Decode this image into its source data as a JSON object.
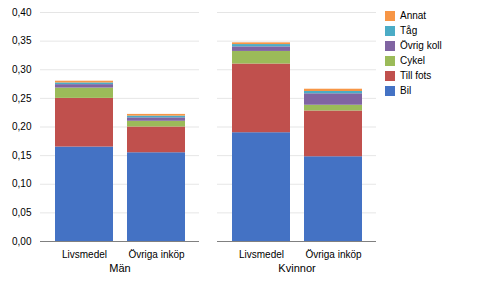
{
  "chart_data": {
    "type": "bar",
    "stacked": true,
    "categories": [
      "Livsmedel",
      "Övriga inköp",
      "Livsmedel",
      "Övriga inköp"
    ],
    "groups": [
      "Män",
      "Män",
      "Kvinnor",
      "Kvinnor"
    ],
    "series": [
      {
        "name": "Bil",
        "color": "#4472C4",
        "values": [
          0.165,
          0.155,
          0.19,
          0.148
        ]
      },
      {
        "name": "Till fots",
        "color": "#C0504D",
        "values": [
          0.085,
          0.045,
          0.12,
          0.08
        ]
      },
      {
        "name": "Cykel",
        "color": "#9BBB59",
        "values": [
          0.018,
          0.01,
          0.022,
          0.01
        ]
      },
      {
        "name": "Övrig koll",
        "color": "#8064A2",
        "values": [
          0.006,
          0.006,
          0.008,
          0.02
        ]
      },
      {
        "name": "Tåg",
        "color": "#4BACC6",
        "values": [
          0.003,
          0.003,
          0.004,
          0.004
        ]
      },
      {
        "name": "Annat",
        "color": "#F79646",
        "values": [
          0.003,
          0.003,
          0.003,
          0.004
        ]
      }
    ],
    "ylim": [
      0,
      0.4
    ],
    "yticks": [
      {
        "value": 0.0,
        "label": "0,00"
      },
      {
        "value": 0.05,
        "label": "0,05"
      },
      {
        "value": 0.1,
        "label": "0,10"
      },
      {
        "value": 0.15,
        "label": "0,15"
      },
      {
        "value": 0.2,
        "label": "0,20"
      },
      {
        "value": 0.25,
        "label": "0,25"
      },
      {
        "value": 0.3,
        "label": "0,30"
      },
      {
        "value": 0.35,
        "label": "0,35"
      },
      {
        "value": 0.4,
        "label": "0,40"
      }
    ],
    "grid": true,
    "legend": "right"
  }
}
